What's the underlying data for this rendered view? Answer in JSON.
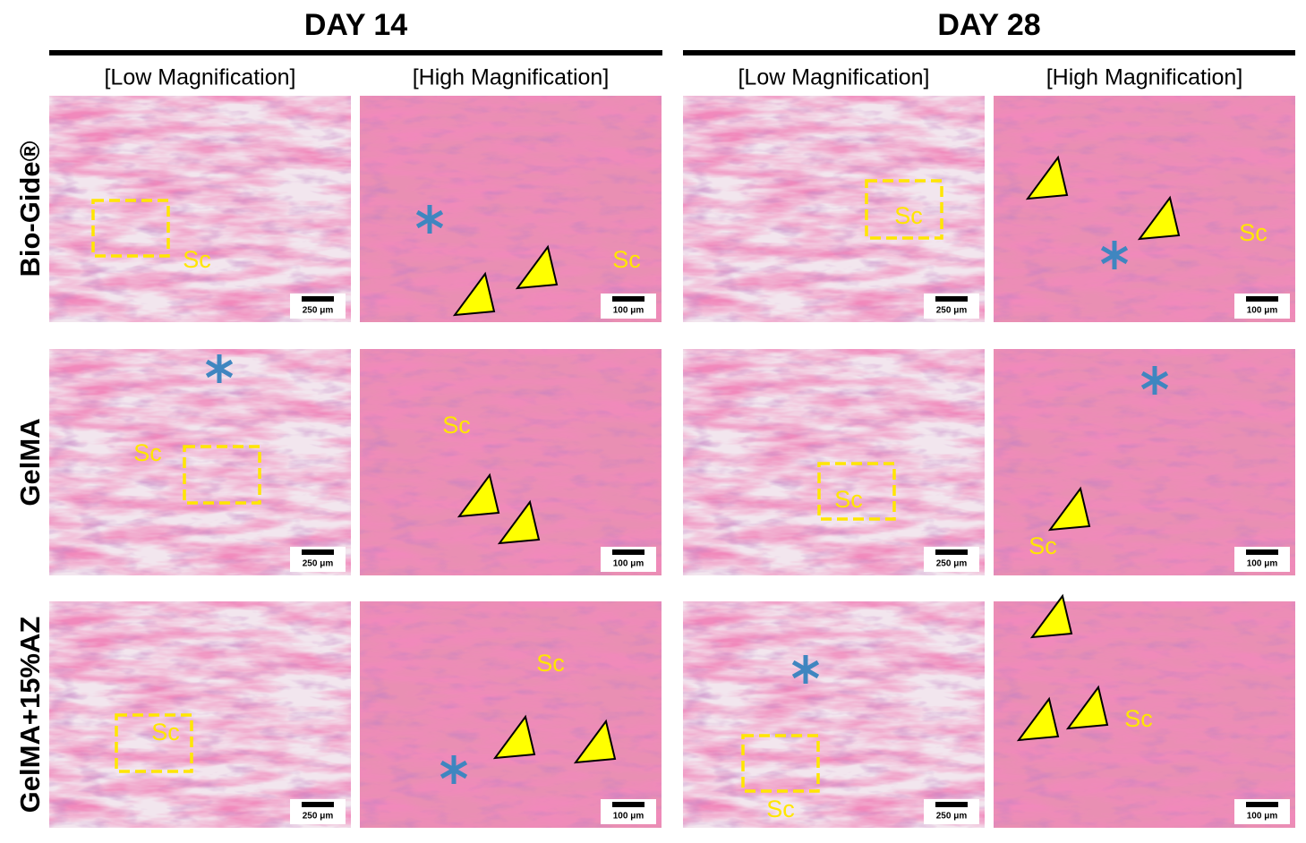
{
  "columns": [
    {
      "day": "DAY 14",
      "subheaders": [
        "[Low Magnification]",
        "[High Magnification]"
      ]
    },
    {
      "day": "DAY 28",
      "subheaders": [
        "[Low Magnification]",
        "[High Magnification]"
      ]
    }
  ],
  "rows": [
    {
      "label": "Bio-Gide®",
      "panels": [
        {
          "label": "Sc",
          "scale_bar": "250 μm"
        },
        {
          "label": "Sc",
          "scale_bar": "100 μm"
        },
        {
          "label": "Sc",
          "scale_bar": "250 μm"
        },
        {
          "label": "Sc",
          "scale_bar": "100 μm"
        }
      ]
    },
    {
      "label": "GelMA",
      "panels": [
        {
          "label": "Sc",
          "scale_bar": "250 μm"
        },
        {
          "label": "Sc",
          "scale_bar": "100 μm"
        },
        {
          "label": "Sc",
          "scale_bar": "250 μm"
        },
        {
          "label": "Sc",
          "scale_bar": "100 μm"
        }
      ]
    },
    {
      "label": "GelMA+15%AZ",
      "panels": [
        {
          "label": "Sc",
          "scale_bar": "250 μm"
        },
        {
          "label": "Sc",
          "scale_bar": "100 μm"
        },
        {
          "label": "Sc",
          "scale_bar": "250 μm"
        },
        {
          "label": "Sc",
          "scale_bar": "100 μm"
        }
      ]
    }
  ]
}
